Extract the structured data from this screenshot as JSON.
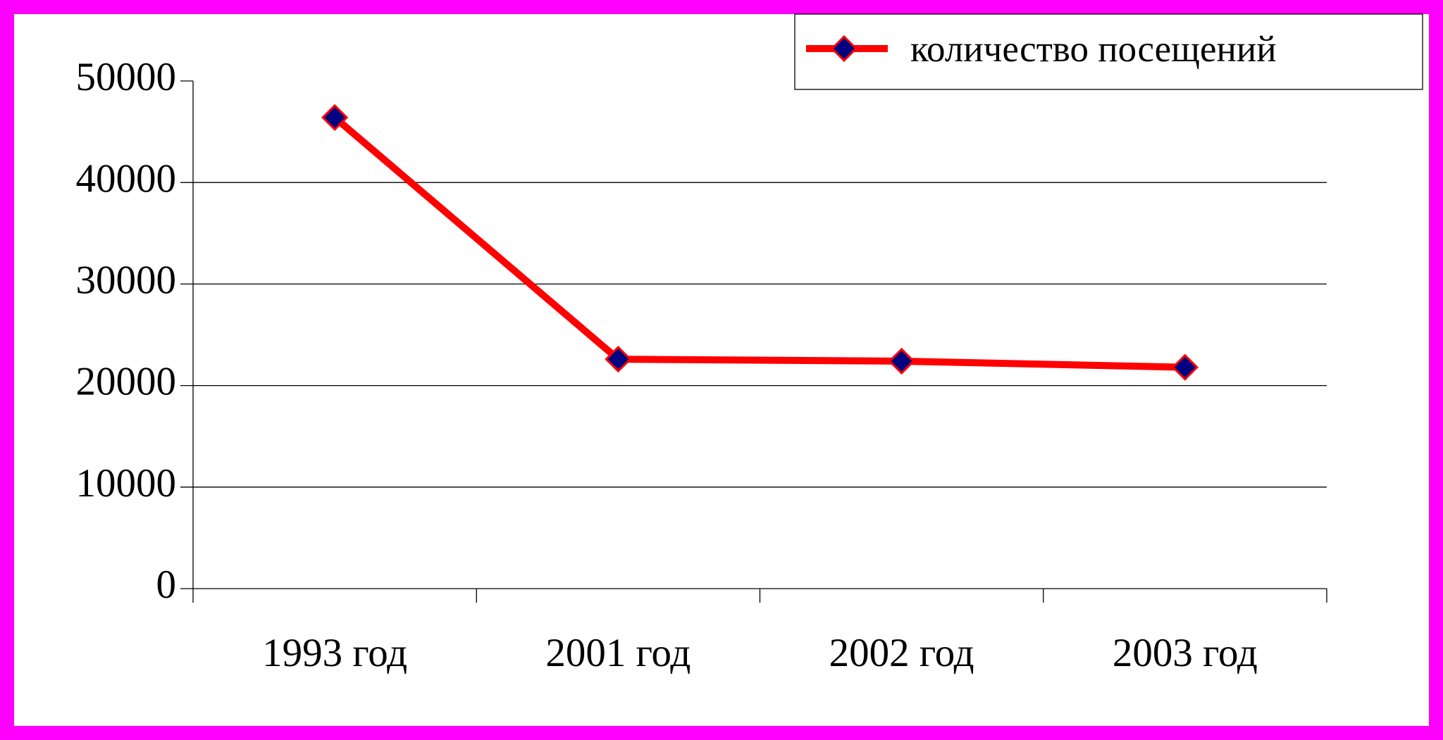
{
  "chart_data": {
    "type": "line",
    "categories": [
      "1993 год",
      "2001 год",
      "2002 год",
      "2003 год"
    ],
    "series": [
      {
        "name": "количество посещений",
        "color": "#ff0000",
        "values": [
          46400,
          22600,
          22400,
          21800
        ]
      }
    ],
    "ylim": [
      0,
      50000
    ],
    "yticks": [
      0,
      10000,
      20000,
      30000,
      40000,
      50000
    ],
    "grid": true,
    "legend": "top-right",
    "marker_color": "#000080"
  }
}
